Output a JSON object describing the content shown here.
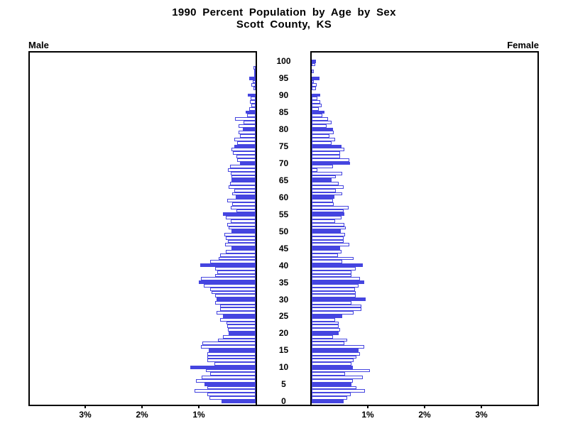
{
  "title": {
    "line1": "1990 Percent Population by Age by Sex",
    "line2": "Scott County, KS"
  },
  "panel_labels": {
    "left": "Male",
    "right": "Female"
  },
  "colors": {
    "bar_blue": "#4545e0",
    "outline_bar_fill": "#ffffff",
    "axis": "#000000",
    "background": "#ffffff"
  },
  "chart_data": {
    "type": "bar",
    "variant": "population-pyramid",
    "title": "1990 Percent Population by Age by Sex",
    "subtitle": "Scott County, KS",
    "unit": "percent of total population",
    "legend_position": "none",
    "grid": false,
    "age_axis": {
      "min": 0,
      "max": 100,
      "tick_step": 5,
      "tick_labels": [
        "0",
        "5",
        "10",
        "15",
        "20",
        "25",
        "30",
        "35",
        "40",
        "45",
        "50",
        "55",
        "60",
        "65",
        "70",
        "75",
        "80",
        "85",
        "90",
        "95",
        "100"
      ]
    },
    "pct_axis": {
      "max_pct_each_side": 4,
      "left_ticks": [
        {
          "label": "3%",
          "pct": 3
        },
        {
          "label": "2%",
          "pct": 2
        },
        {
          "label": "1%",
          "pct": 1
        }
      ],
      "right_ticks": [
        {
          "label": "1%",
          "pct": 1
        },
        {
          "label": "2%",
          "pct": 2
        },
        {
          "label": "3%",
          "pct": 3
        }
      ]
    },
    "highlight_rule": "bars for ages divisible by 5 are solid blue; all other single-year bars are white with blue outline",
    "series": [
      {
        "name": "Male",
        "side": "left",
        "age_order": "0-100",
        "values": [
          0.6,
          0.81,
          0.85,
          1.08,
          0.85,
          0.9,
          1.05,
          0.95,
          0.8,
          0.88,
          1.15,
          0.73,
          0.85,
          0.85,
          0.85,
          0.82,
          0.96,
          0.94,
          0.66,
          0.58,
          0.47,
          0.49,
          0.5,
          0.51,
          0.62,
          0.58,
          0.69,
          0.63,
          0.63,
          0.71,
          0.69,
          0.71,
          0.78,
          0.8,
          0.91,
          1.0,
          0.96,
          0.71,
          0.68,
          0.71,
          0.98,
          0.8,
          0.65,
          0.62,
          0.52,
          0.42,
          0.54,
          0.49,
          0.52,
          0.55,
          0.43,
          0.48,
          0.5,
          0.44,
          0.52,
          0.57,
          0.34,
          0.44,
          0.41,
          0.5,
          0.35,
          0.41,
          0.38,
          0.47,
          0.45,
          0.43,
          0.42,
          0.44,
          0.49,
          0.45,
          0.28,
          0.32,
          0.34,
          0.4,
          0.42,
          0.38,
          0.32,
          0.37,
          0.28,
          0.3,
          0.23,
          0.3,
          0.21,
          0.36,
          0.15,
          0.18,
          0.11,
          0.07,
          0.1,
          0.09,
          0.14,
          0.0,
          0.04,
          0.07,
          0.05,
          0.11,
          0.03,
          0.03,
          0.04,
          0.0,
          0.0
        ]
      },
      {
        "name": "Female",
        "side": "right",
        "age_order": "0-100",
        "values": [
          0.56,
          0.62,
          0.69,
          0.94,
          0.79,
          0.7,
          0.73,
          0.9,
          0.59,
          1.03,
          0.72,
          0.7,
          0.74,
          0.79,
          0.85,
          0.83,
          0.93,
          0.58,
          0.62,
          0.37,
          0.47,
          0.5,
          0.47,
          0.48,
          0.41,
          0.54,
          0.74,
          0.88,
          0.88,
          0.7,
          0.95,
          0.77,
          0.77,
          0.76,
          0.83,
          0.93,
          0.85,
          0.7,
          0.7,
          0.77,
          0.9,
          0.54,
          0.74,
          0.46,
          0.53,
          0.5,
          0.66,
          0.56,
          0.56,
          0.59,
          0.51,
          0.6,
          0.58,
          0.41,
          0.52,
          0.58,
          0.56,
          0.65,
          0.39,
          0.38,
          0.4,
          0.54,
          0.43,
          0.56,
          0.47,
          0.35,
          0.43,
          0.54,
          0.1,
          0.37,
          0.68,
          0.66,
          0.5,
          0.5,
          0.58,
          0.52,
          0.35,
          0.41,
          0.31,
          0.39,
          0.37,
          0.26,
          0.35,
          0.29,
          0.19,
          0.22,
          0.12,
          0.17,
          0.15,
          0.1,
          0.15,
          0.0,
          0.08,
          0.09,
          0.04,
          0.14,
          0.0,
          0.04,
          0.0,
          0.06,
          0.07
        ]
      }
    ]
  }
}
